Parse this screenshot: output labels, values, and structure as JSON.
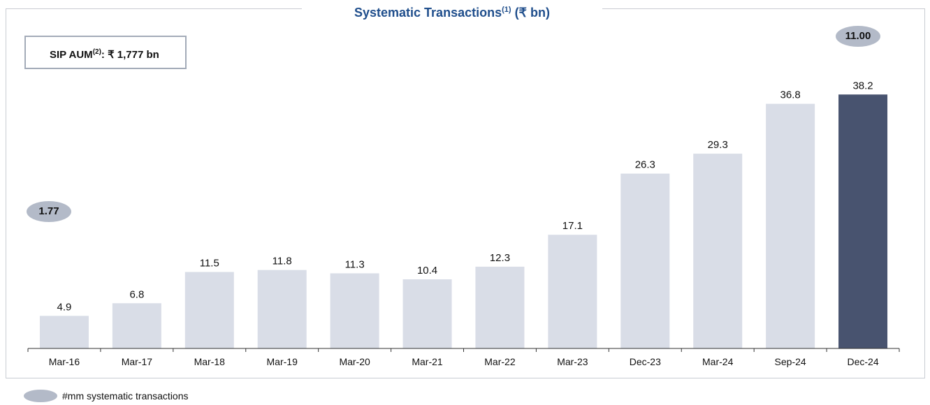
{
  "chart_data": {
    "type": "bar",
    "title": "Systematic Transactions",
    "title_sup": "(1)",
    "title_unit": " (₹ bn)",
    "categories": [
      "Mar-16",
      "Mar-17",
      "Mar-18",
      "Mar-19",
      "Mar-20",
      "Mar-21",
      "Mar-22",
      "Mar-23",
      "Dec-23",
      "Mar-24",
      "Sep-24",
      "Dec-24"
    ],
    "values": [
      4.9,
      6.8,
      11.5,
      11.8,
      11.3,
      10.4,
      12.3,
      17.1,
      26.3,
      29.3,
      36.8,
      38.2
    ],
    "data_labels": [
      "4.9",
      "6.8",
      "11.5",
      "11.8",
      "11.3",
      "10.4",
      "12.3",
      "17.1",
      "26.3",
      "29.3",
      "36.8",
      "38.2"
    ],
    "ylim": [
      0,
      42
    ],
    "grid": false,
    "colors": {
      "bar": "#d9dde7",
      "highlight": "#48536f"
    },
    "highlight_index": 11
  },
  "aum_box": {
    "label": "SIP AUM",
    "sup": "(2)",
    "value": ": ₹ 1,777 bn"
  },
  "pills": {
    "start": "1.77",
    "end": "11.00"
  },
  "legend": {
    "label": "#mm systematic transactions"
  }
}
